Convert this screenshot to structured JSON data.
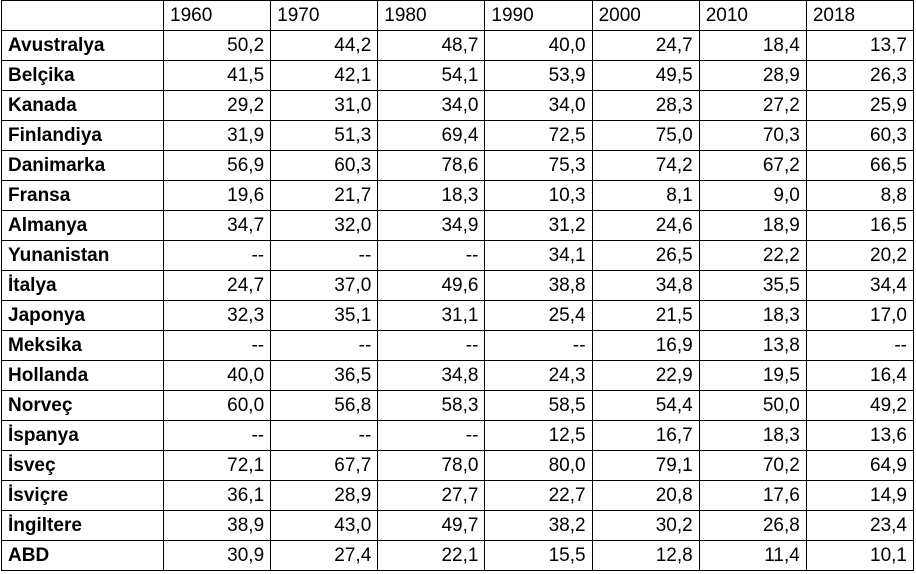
{
  "table": {
    "header": [
      "",
      "1960",
      "1970",
      "1980",
      "1990",
      "2000",
      "2010",
      "2018"
    ],
    "rows": [
      [
        "Avustralya",
        "50,2",
        "44,2",
        "48,7",
        "40,0",
        "24,7",
        "18,4",
        "13,7"
      ],
      [
        "Belçika",
        "41,5",
        "42,1",
        "54,1",
        "53,9",
        "49,5",
        "28,9",
        "26,3"
      ],
      [
        "Kanada",
        "29,2",
        "31,0",
        "34,0",
        "34,0",
        "28,3",
        "27,2",
        "25,9"
      ],
      [
        "Finlandiya",
        "31,9",
        "51,3",
        "69,4",
        "72,5",
        "75,0",
        "70,3",
        "60,3"
      ],
      [
        "Danimarka",
        "56,9",
        "60,3",
        "78,6",
        "75,3",
        "74,2",
        "67,2",
        "66,5"
      ],
      [
        "Fransa",
        "19,6",
        "21,7",
        "18,3",
        "10,3",
        "8,1",
        "9,0",
        "8,8"
      ],
      [
        "Almanya",
        "34,7",
        "32,0",
        "34,9",
        "31,2",
        "24,6",
        "18,9",
        "16,5"
      ],
      [
        "Yunanistan",
        "--",
        "--",
        "--",
        "34,1",
        "26,5",
        "22,2",
        "20,2"
      ],
      [
        "İtalya",
        "24,7",
        "37,0",
        "49,6",
        "38,8",
        "34,8",
        "35,5",
        "34,4"
      ],
      [
        "Japonya",
        "32,3",
        "35,1",
        "31,1",
        "25,4",
        "21,5",
        "18,3",
        "17,0"
      ],
      [
        "Meksika",
        "--",
        "--",
        "--",
        "--",
        "16,9",
        "13,8",
        "--"
      ],
      [
        "Hollanda",
        "40,0",
        "36,5",
        "34,8",
        "24,3",
        "22,9",
        "19,5",
        "16,4"
      ],
      [
        "Norveç",
        "60,0",
        "56,8",
        "58,3",
        "58,5",
        "54,4",
        "50,0",
        "49,2"
      ],
      [
        "İspanya",
        "--",
        "--",
        "--",
        "12,5",
        "16,7",
        "18,3",
        "13,6"
      ],
      [
        "İsveç",
        "72,1",
        "67,7",
        "78,0",
        "80,0",
        "79,1",
        "70,2",
        "64,9"
      ],
      [
        "İsviçre",
        "36,1",
        "28,9",
        "27,7",
        "22,7",
        "20,8",
        "17,6",
        "14,9"
      ],
      [
        "İngiltere",
        "38,9",
        "43,0",
        "49,7",
        "38,2",
        "30,2",
        "26,8",
        "23,4"
      ],
      [
        "ABD",
        "30,9",
        "27,4",
        "22,1",
        "15,5",
        "12,8",
        "11,4",
        "10,1"
      ]
    ]
  }
}
